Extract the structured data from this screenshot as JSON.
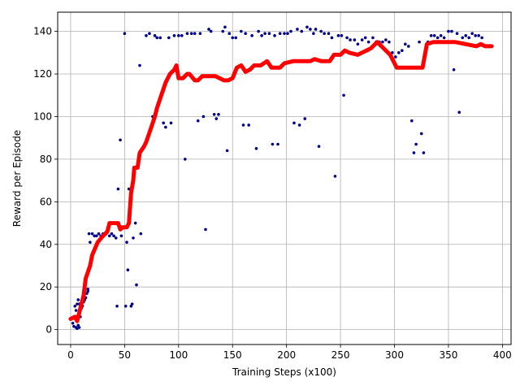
{
  "chart_data": {
    "type": "scatter",
    "title": "",
    "xlabel": "Training Steps (x100)",
    "ylabel": "Reward per Episode",
    "xlim": [
      -12,
      408
    ],
    "ylim": [
      -7,
      149
    ],
    "xticks": [
      0,
      50,
      100,
      150,
      200,
      250,
      300,
      350,
      400
    ],
    "yticks": [
      0,
      20,
      40,
      60,
      80,
      100,
      120,
      140
    ],
    "grid": true,
    "legend": "none",
    "series": [
      {
        "kind": "scatter",
        "color": "#00008b",
        "points": [
          [
            2,
            3
          ],
          [
            3,
            1.5
          ],
          [
            4,
            6
          ],
          [
            4,
            11
          ],
          [
            5,
            9
          ],
          [
            5,
            1
          ],
          [
            6,
            0.5
          ],
          [
            6,
            12
          ],
          [
            7,
            2
          ],
          [
            7,
            14
          ],
          [
            8,
            1
          ],
          [
            8,
            12
          ],
          [
            9,
            6
          ],
          [
            10,
            10
          ],
          [
            11,
            11
          ],
          [
            12,
            13
          ],
          [
            13,
            14
          ],
          [
            14,
            15
          ],
          [
            15,
            17
          ],
          [
            16,
            19
          ],
          [
            16,
            18
          ],
          [
            17,
            45
          ],
          [
            18,
            41
          ],
          [
            20,
            45
          ],
          [
            22,
            44
          ],
          [
            24,
            44
          ],
          [
            26,
            45
          ],
          [
            28,
            44
          ],
          [
            30,
            45
          ],
          [
            33,
            45
          ],
          [
            36,
            44
          ],
          [
            38,
            45
          ],
          [
            40,
            44
          ],
          [
            42,
            43
          ],
          [
            43,
            11
          ],
          [
            44,
            66
          ],
          [
            46,
            89
          ],
          [
            47,
            44
          ],
          [
            50,
            139
          ],
          [
            51,
            11
          ],
          [
            52,
            41
          ],
          [
            53,
            28
          ],
          [
            54,
            66
          ],
          [
            56,
            11
          ],
          [
            57,
            12
          ],
          [
            58,
            43
          ],
          [
            60,
            50
          ],
          [
            61,
            21
          ],
          [
            64,
            124
          ],
          [
            65,
            45
          ],
          [
            70,
            138
          ],
          [
            73,
            139
          ],
          [
            76,
            100
          ],
          [
            78,
            138
          ],
          [
            80,
            137
          ],
          [
            83,
            137
          ],
          [
            86,
            97
          ],
          [
            88,
            95
          ],
          [
            91,
            137
          ],
          [
            93,
            97
          ],
          [
            96,
            138
          ],
          [
            100,
            138
          ],
          [
            103,
            138
          ],
          [
            106,
            80
          ],
          [
            108,
            139
          ],
          [
            112,
            139
          ],
          [
            115,
            139
          ],
          [
            118,
            98
          ],
          [
            120,
            139
          ],
          [
            123,
            100
          ],
          [
            125,
            47
          ],
          [
            128,
            141
          ],
          [
            130,
            140
          ],
          [
            133,
            101
          ],
          [
            135,
            99
          ],
          [
            137,
            101
          ],
          [
            141,
            140
          ],
          [
            143,
            142
          ],
          [
            145,
            84
          ],
          [
            147,
            139
          ],
          [
            150,
            137
          ],
          [
            153,
            137
          ],
          [
            158,
            140
          ],
          [
            160,
            96
          ],
          [
            162,
            139
          ],
          [
            165,
            96
          ],
          [
            168,
            138
          ],
          [
            172,
            85
          ],
          [
            174,
            140
          ],
          [
            177,
            138
          ],
          [
            180,
            139
          ],
          [
            184,
            139
          ],
          [
            187,
            87
          ],
          [
            189,
            138
          ],
          [
            192,
            87
          ],
          [
            194,
            139
          ],
          [
            198,
            139
          ],
          [
            201,
            139
          ],
          [
            204,
            140
          ],
          [
            207,
            97
          ],
          [
            210,
            141
          ],
          [
            212,
            96
          ],
          [
            214,
            140
          ],
          [
            217,
            99
          ],
          [
            219,
            142
          ],
          [
            222,
            141
          ],
          [
            225,
            139
          ],
          [
            227,
            141
          ],
          [
            230,
            86
          ],
          [
            232,
            140
          ],
          [
            235,
            139
          ],
          [
            239,
            139
          ],
          [
            242,
            137
          ],
          [
            245,
            72
          ],
          [
            248,
            138
          ],
          [
            251,
            138
          ],
          [
            253,
            110
          ],
          [
            256,
            137
          ],
          [
            259,
            136
          ],
          [
            263,
            136
          ],
          [
            266,
            134
          ],
          [
            270,
            136
          ],
          [
            273,
            137
          ],
          [
            276,
            135
          ],
          [
            280,
            137
          ],
          [
            283,
            135
          ],
          [
            286,
            135
          ],
          [
            289,
            135
          ],
          [
            292,
            136
          ],
          [
            295,
            135
          ],
          [
            298,
            130
          ],
          [
            301,
            128
          ],
          [
            304,
            130
          ],
          [
            307,
            131
          ],
          [
            310,
            134
          ],
          [
            313,
            133
          ],
          [
            316,
            98
          ],
          [
            318,
            83
          ],
          [
            320,
            87
          ],
          [
            323,
            135
          ],
          [
            325,
            92
          ],
          [
            327,
            83
          ],
          [
            331,
            135
          ],
          [
            334,
            138
          ],
          [
            337,
            138
          ],
          [
            340,
            137
          ],
          [
            343,
            138
          ],
          [
            346,
            137
          ],
          [
            350,
            140
          ],
          [
            353,
            140
          ],
          [
            355,
            122
          ],
          [
            358,
            139
          ],
          [
            360,
            102
          ],
          [
            363,
            137
          ],
          [
            366,
            138
          ],
          [
            369,
            137
          ],
          [
            372,
            139
          ],
          [
            375,
            138
          ],
          [
            378,
            138
          ],
          [
            381,
            137
          ]
        ]
      },
      {
        "kind": "line",
        "color": "#ff0000",
        "points": [
          [
            0,
            5
          ],
          [
            4,
            6
          ],
          [
            6,
            4
          ],
          [
            8,
            8
          ],
          [
            10,
            12
          ],
          [
            12,
            16
          ],
          [
            14,
            24
          ],
          [
            18,
            30
          ],
          [
            20,
            35
          ],
          [
            25,
            41
          ],
          [
            30,
            44
          ],
          [
            34,
            46
          ],
          [
            36,
            50
          ],
          [
            40,
            50
          ],
          [
            44,
            50
          ],
          [
            46,
            47
          ],
          [
            48,
            48
          ],
          [
            52,
            48
          ],
          [
            54,
            50
          ],
          [
            56,
            64
          ],
          [
            58,
            70
          ],
          [
            59,
            76
          ],
          [
            62,
            76
          ],
          [
            64,
            83
          ],
          [
            68,
            86
          ],
          [
            70,
            88
          ],
          [
            74,
            94
          ],
          [
            78,
            100
          ],
          [
            80,
            104
          ],
          [
            84,
            110
          ],
          [
            88,
            116
          ],
          [
            92,
            120
          ],
          [
            96,
            122
          ],
          [
            98,
            124
          ],
          [
            100,
            118
          ],
          [
            104,
            118
          ],
          [
            108,
            120
          ],
          [
            110,
            120
          ],
          [
            115,
            117
          ],
          [
            118,
            117
          ],
          [
            122,
            119
          ],
          [
            126,
            119
          ],
          [
            130,
            119
          ],
          [
            134,
            119
          ],
          [
            138,
            118
          ],
          [
            142,
            117
          ],
          [
            146,
            117
          ],
          [
            150,
            118
          ],
          [
            154,
            123
          ],
          [
            158,
            124
          ],
          [
            162,
            121
          ],
          [
            166,
            122
          ],
          [
            170,
            124
          ],
          [
            176,
            124
          ],
          [
            182,
            126
          ],
          [
            186,
            123
          ],
          [
            194,
            123
          ],
          [
            198,
            125
          ],
          [
            206,
            126
          ],
          [
            214,
            126
          ],
          [
            222,
            126
          ],
          [
            226,
            127
          ],
          [
            232,
            126
          ],
          [
            240,
            126
          ],
          [
            244,
            129
          ],
          [
            250,
            129
          ],
          [
            254,
            131
          ],
          [
            258,
            130
          ],
          [
            266,
            129
          ],
          [
            274,
            131
          ],
          [
            278,
            132
          ],
          [
            284,
            135
          ],
          [
            290,
            132
          ],
          [
            296,
            129
          ],
          [
            302,
            123
          ],
          [
            306,
            123
          ],
          [
            314,
            123
          ],
          [
            320,
            123
          ],
          [
            326,
            123
          ],
          [
            330,
            134
          ],
          [
            336,
            135
          ],
          [
            346,
            135
          ],
          [
            356,
            135
          ],
          [
            366,
            134
          ],
          [
            376,
            133
          ],
          [
            380,
            134
          ],
          [
            384,
            133
          ],
          [
            390,
            133
          ]
        ]
      }
    ]
  }
}
